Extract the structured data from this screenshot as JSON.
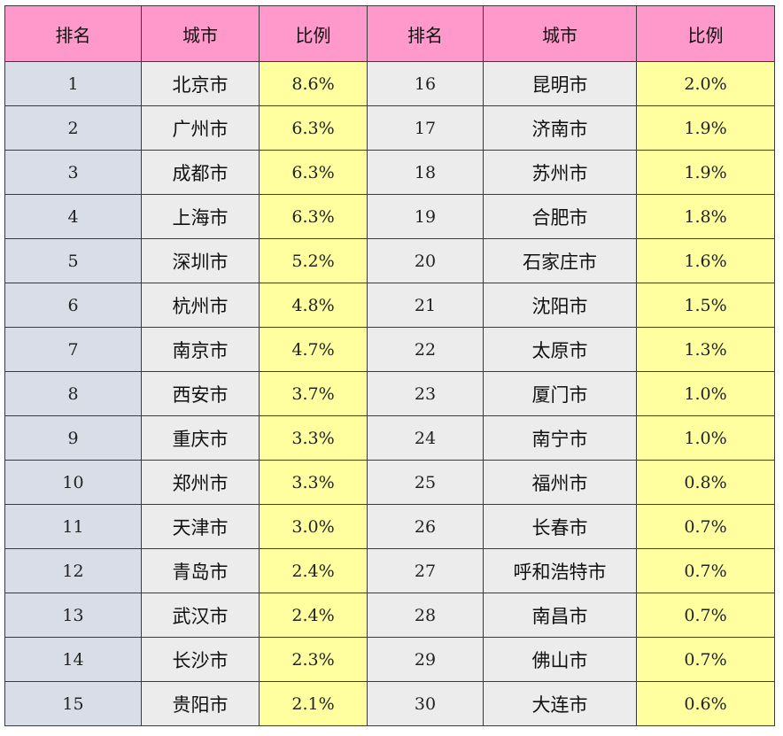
{
  "table": {
    "headers": [
      "排名",
      "城市",
      "比例",
      "排名",
      "城市",
      "比例"
    ],
    "rows": [
      {
        "rank_a": "1",
        "city_a": "北京市",
        "pct_a": "8.6%",
        "rank_b": "16",
        "city_b": "昆明市",
        "pct_b": "2.0%"
      },
      {
        "rank_a": "2",
        "city_a": "广州市",
        "pct_a": "6.3%",
        "rank_b": "17",
        "city_b": "济南市",
        "pct_b": "1.9%"
      },
      {
        "rank_a": "3",
        "city_a": "成都市",
        "pct_a": "6.3%",
        "rank_b": "18",
        "city_b": "苏州市",
        "pct_b": "1.9%"
      },
      {
        "rank_a": "4",
        "city_a": "上海市",
        "pct_a": "6.3%",
        "rank_b": "19",
        "city_b": "合肥市",
        "pct_b": "1.8%"
      },
      {
        "rank_a": "5",
        "city_a": "深圳市",
        "pct_a": "5.2%",
        "rank_b": "20",
        "city_b": "石家庄市",
        "pct_b": "1.6%"
      },
      {
        "rank_a": "6",
        "city_a": "杭州市",
        "pct_a": "4.8%",
        "rank_b": "21",
        "city_b": "沈阳市",
        "pct_b": "1.5%"
      },
      {
        "rank_a": "7",
        "city_a": "南京市",
        "pct_a": "4.7%",
        "rank_b": "22",
        "city_b": "太原市",
        "pct_b": "1.3%"
      },
      {
        "rank_a": "8",
        "city_a": "西安市",
        "pct_a": "3.7%",
        "rank_b": "23",
        "city_b": "厦门市",
        "pct_b": "1.0%"
      },
      {
        "rank_a": "9",
        "city_a": "重庆市",
        "pct_a": "3.3%",
        "rank_b": "24",
        "city_b": "南宁市",
        "pct_b": "1.0%"
      },
      {
        "rank_a": "10",
        "city_a": "郑州市",
        "pct_a": "3.3%",
        "rank_b": "25",
        "city_b": "福州市",
        "pct_b": "0.8%"
      },
      {
        "rank_a": "11",
        "city_a": "天津市",
        "pct_a": "3.0%",
        "rank_b": "26",
        "city_b": "长春市",
        "pct_b": "0.7%"
      },
      {
        "rank_a": "12",
        "city_a": "青岛市",
        "pct_a": "2.4%",
        "rank_b": "27",
        "city_b": "呼和浩特市",
        "pct_b": "0.7%"
      },
      {
        "rank_a": "13",
        "city_a": "武汉市",
        "pct_a": "2.4%",
        "rank_b": "28",
        "city_b": "南昌市",
        "pct_b": "0.7%"
      },
      {
        "rank_a": "14",
        "city_a": "长沙市",
        "pct_a": "2.3%",
        "rank_b": "29",
        "city_b": "佛山市",
        "pct_b": "0.7%"
      },
      {
        "rank_a": "15",
        "city_a": "贵阳市",
        "pct_a": "2.1%",
        "rank_b": "30",
        "city_b": "大连市",
        "pct_b": "0.6%"
      }
    ]
  },
  "colors": {
    "header_bg": "#ff99cc",
    "rank_left_bg": "#d9dde8",
    "city_bg": "#ececec",
    "percent_bg": "#ffff9f",
    "border": "#3a3a3a"
  }
}
